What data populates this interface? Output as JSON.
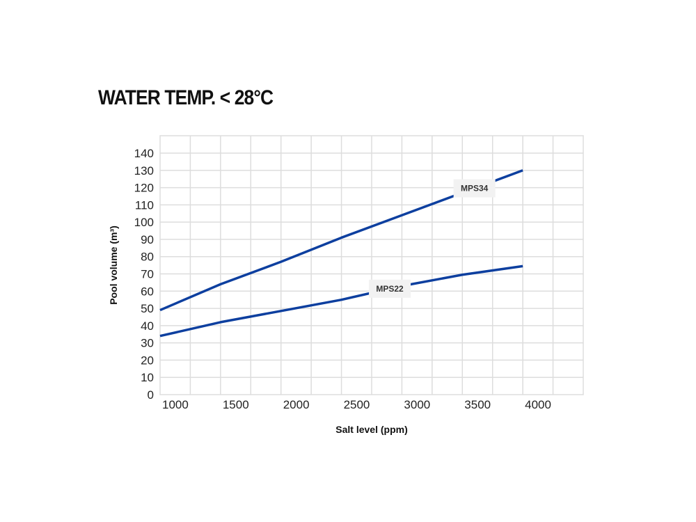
{
  "chart_data": {
    "type": "line",
    "title": "WATER TEMP. < 28°C",
    "xlabel": "Salt level (ppm)",
    "ylabel": "Pool volume (m³)",
    "xlim": [
      1000,
      4500
    ],
    "ylim": [
      0,
      140
    ],
    "xticks": [
      1000,
      1500,
      2000,
      2500,
      3000,
      3500,
      4000
    ],
    "yticks": [
      0,
      10,
      20,
      30,
      40,
      50,
      60,
      70,
      80,
      90,
      100,
      110,
      120,
      130,
      140
    ],
    "grid": true,
    "x": [
      1000,
      1500,
      2000,
      2500,
      3000,
      3500,
      4000
    ],
    "series": [
      {
        "name": "MPS34",
        "values": [
          49,
          64,
          77,
          91,
          104,
          117,
          130
        ],
        "color": "#0d3f9f",
        "label_at": 3600
      },
      {
        "name": "MPS22",
        "values": [
          34,
          42,
          48.5,
          55,
          63,
          69.5,
          74.5
        ],
        "color": "#0d3f9f",
        "label_at": 2900
      }
    ]
  }
}
